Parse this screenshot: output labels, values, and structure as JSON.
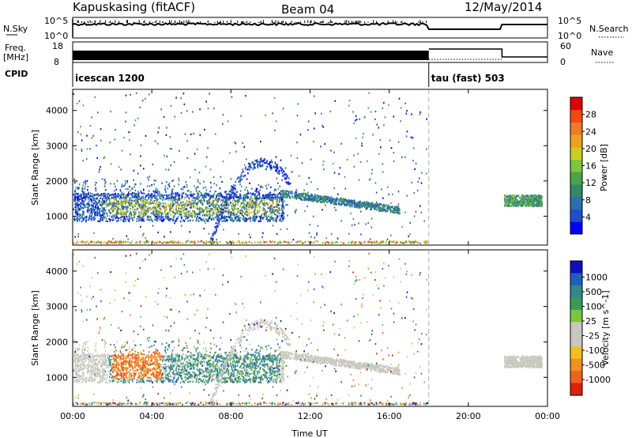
{
  "header": {
    "station": "Kapuskasing (fitACF)",
    "beam": "Beam 04",
    "date": "12/May/2014"
  },
  "top_panels": {
    "nsky_label": "N.Sky",
    "nsky_ticks": [
      "10^5",
      "10^0"
    ],
    "nsearch_label": "N.Search",
    "nsearch_ticks": [
      "10^5",
      "10^0"
    ],
    "freq_label": "Freq.",
    "freq_unit": "[MHz]",
    "freq_ticks": [
      "18",
      "8"
    ],
    "nave_label": "Nave",
    "nave_ticks": [
      "60",
      "0"
    ],
    "cpid_label": "CPID",
    "cpid_segments": [
      {
        "name": "icescan 1200",
        "start_hour": 0,
        "end_hour": 18
      },
      {
        "name": "tau (fast) 503",
        "start_hour": 18,
        "end_hour": 24
      }
    ]
  },
  "chart_data": [
    {
      "type": "heatmap",
      "name": "power",
      "ylabel": "Slant Range [km]",
      "xlim": [
        0,
        24
      ],
      "ylim": [
        180,
        4600
      ],
      "yticks": [
        1000,
        2000,
        3000,
        4000
      ],
      "colorbar": {
        "label": "Power [dB]",
        "ticks": [
          "4",
          "8",
          "12",
          "16",
          "20",
          "24",
          "28"
        ],
        "colors": [
          "#0000ff",
          "#1f4fd0",
          "#2e6eb0",
          "#2f8a6a",
          "#4aa24a",
          "#7fc63a",
          "#c8d020",
          "#f0a020",
          "#f07a20",
          "#f04a10",
          "#e00000"
        ]
      }
    },
    {
      "type": "heatmap",
      "name": "velocity",
      "xlabel": "Time UT",
      "ylabel": "Slant Range [km]",
      "xlim": [
        0,
        24
      ],
      "ylim": [
        180,
        4600
      ],
      "xticks": [
        "00:00",
        "04:00",
        "08:00",
        "12:00",
        "16:00",
        "20:00",
        "00:00"
      ],
      "yticks": [
        1000,
        2000,
        3000,
        4000
      ],
      "colorbar": {
        "label": "Velocity [m s^-1]",
        "ticks": [
          "1000",
          "500",
          "100",
          "25",
          "-25",
          "-100",
          "-500",
          "-1000"
        ],
        "colors": [
          "#1010c0",
          "#1f5fc0",
          "#2f8a8a",
          "#3a9a5a",
          "#7ac83a",
          "#c8c8c0",
          "#c8c8c0",
          "#f0c020",
          "#f09020",
          "#f06020",
          "#e02000"
        ]
      }
    }
  ]
}
